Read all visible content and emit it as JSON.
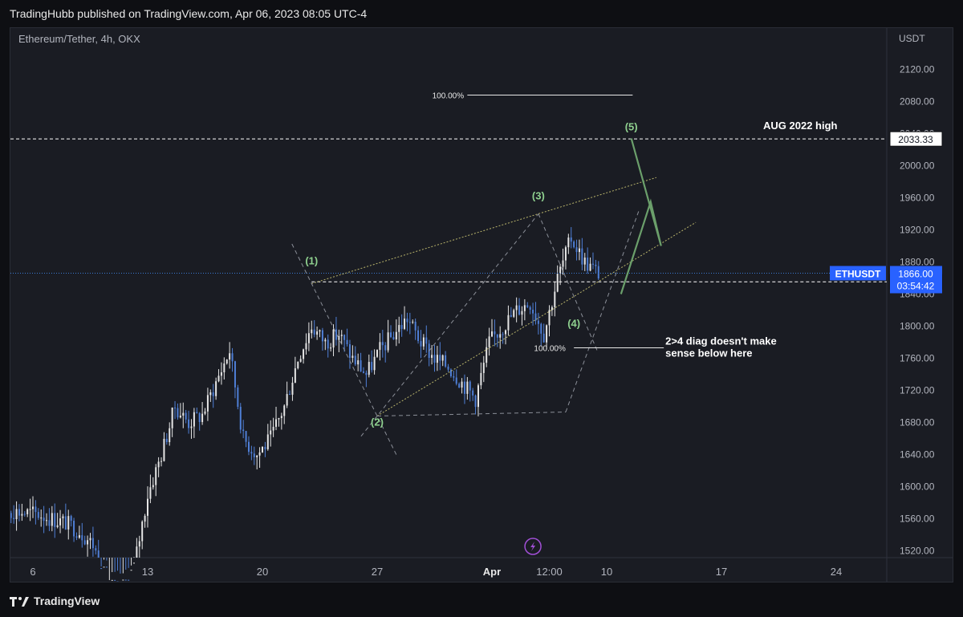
{
  "header": {
    "published_text": "TradingHubb published on TradingView.com, Apr 06, 2023 08:05 UTC-4"
  },
  "footer": {
    "brand": "TradingView",
    "logo_icon": "tradingview-logo-icon"
  },
  "colors": {
    "background": "#1a1c23",
    "up_candle": "#e6e6e6",
    "down_candle": "#4f7fd6",
    "wave_label": "#8fd18f",
    "wedge_line": "#b8b36b",
    "price_line": "#3a7bd5",
    "dashed_gray": "#8b8f98",
    "projection": "#6b9f6b",
    "flash_icon": "#a14fd6"
  },
  "chart_data": {
    "type": "candlestick",
    "title": "Ethereum/Tether, 4h, OKX",
    "symbol": "ETHUSDT",
    "currency": "USDT",
    "ylim": [
      1500,
      2160
    ],
    "y_ticks": [
      "2120.00",
      "2080.00",
      "2040.00",
      "2000.00",
      "1960.00",
      "1920.00",
      "1880.00",
      "1840.00",
      "1800.00",
      "1760.00",
      "1720.00",
      "1680.00",
      "1640.00",
      "1600.00",
      "1560.00",
      "1520.00"
    ],
    "x_ticks": [
      {
        "label": "6",
        "date": "Mar 6"
      },
      {
        "label": "13",
        "date": "Mar 13"
      },
      {
        "label": "20",
        "date": "Mar 20"
      },
      {
        "label": "27",
        "date": "Mar 27"
      },
      {
        "label": "Apr",
        "date": "Apr 3",
        "bold": true
      },
      {
        "label": "12:00",
        "date": "Apr 6 12:00"
      },
      {
        "label": "10",
        "date": "Apr 10"
      },
      {
        "label": "17",
        "date": "Apr 17"
      },
      {
        "label": "24",
        "date": "Apr 24"
      }
    ],
    "price_labels": {
      "current": {
        "label": "ETHUSDT",
        "price": "1866.00",
        "countdown": "03:54:42"
      },
      "aug_high": {
        "price": "2033.33"
      },
      "support": {
        "price": "1855.24"
      }
    },
    "close_path": [
      [
        "Mar 3 00:00",
        1578
      ],
      [
        "Mar 3 20:00",
        1572
      ],
      [
        "Mar 4 16:00",
        1570
      ],
      [
        "Mar 5 12:00",
        1568
      ],
      [
        "Mar 6 08:00",
        1566
      ],
      [
        "Mar 7 04:00",
        1560
      ],
      [
        "Mar 8 00:00",
        1555
      ],
      [
        "Mar 8 20:00",
        1545
      ],
      [
        "Mar 9 16:00",
        1528
      ],
      [
        "Mar 10 12:00",
        1480
      ],
      [
        "Mar 11 08:00",
        1470
      ],
      [
        "Mar 12 04:00",
        1500
      ],
      [
        "Mar 13 00:00",
        1590
      ],
      [
        "Mar 13 20:00",
        1640
      ],
      [
        "Mar 14 16:00",
        1700
      ],
      [
        "Mar 15 12:00",
        1680
      ],
      [
        "Mar 16 08:00",
        1690
      ],
      [
        "Mar 17 04:00",
        1730
      ],
      [
        "Mar 18 00:00",
        1770
      ],
      [
        "Mar 18 20:00",
        1660
      ],
      [
        "Mar 19 16:00",
        1640
      ],
      [
        "Mar 20 12:00",
        1660
      ],
      [
        "Mar 21 08:00",
        1700
      ],
      [
        "Mar 22 04:00",
        1760
      ],
      [
        "Mar 23 00:00",
        1800
      ],
      [
        "Mar 23 20:00",
        1780
      ],
      [
        "Mar 24 16:00",
        1790
      ],
      [
        "Mar 25 12:00",
        1760
      ],
      [
        "Mar 26 08:00",
        1740
      ],
      [
        "Mar 27 04:00",
        1770
      ],
      [
        "Mar 28 00:00",
        1790
      ],
      [
        "Mar 28 20:00",
        1810
      ],
      [
        "Mar 29 16:00",
        1780
      ],
      [
        "Mar 30 12:00",
        1760
      ],
      [
        "Mar 31 08:00",
        1750
      ],
      [
        "Apr 1 04:00",
        1730
      ],
      [
        "Apr 2 00:00",
        1710
      ],
      [
        "Apr 2 20:00",
        1780
      ],
      [
        "Apr 3 16:00",
        1800
      ],
      [
        "Apr 4 12:00",
        1820
      ],
      [
        "Apr 5 08:00",
        1830
      ],
      [
        "Apr 6 04:00",
        1790
      ],
      [
        "Apr 7 00:00",
        1860
      ],
      [
        "Apr 7 20:00",
        1910
      ],
      [
        "Apr 8 16:00",
        1880
      ],
      [
        "Apr 9 12:00",
        1866
      ]
    ],
    "annotations": {
      "wave_labels": [
        {
          "text": "(1)",
          "date": "Mar 23 00:00",
          "price": 1881
        },
        {
          "text": "(2)",
          "date": "Mar 27 00:00",
          "price": 1680
        },
        {
          "text": "(3)",
          "date": "Apr 5 20:00",
          "price": 1962
        },
        {
          "text": "(4)",
          "date": "Apr 8 00:00",
          "price": 1803
        },
        {
          "text": "(5)",
          "date": "Apr 11 12:00",
          "price": 2048
        }
      ],
      "fib_1": {
        "text": "100.00%",
        "price": 2088
      },
      "fib_2": {
        "text": "100.00%",
        "price": 1773
      },
      "aug_high_label": "AUG 2022 high",
      "note_line1": "2>4 diag doesn't make",
      "note_line2": "sense below here"
    }
  }
}
